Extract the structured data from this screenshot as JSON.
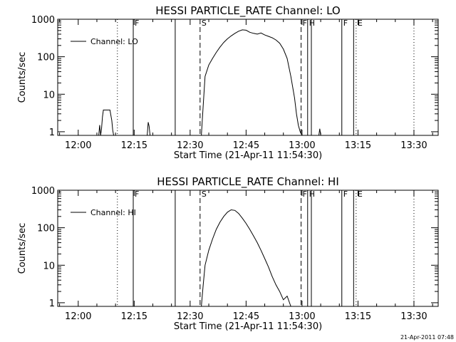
{
  "chart_data": [
    {
      "type": "line",
      "title": "HESSI PARTICLE_RATE Channel: LO",
      "xlabel": "Start Time (21-Apr-11 11:54:30)",
      "ylabel": "Counts/sec",
      "y_scale": "log",
      "xlim": [
        "11:54:30",
        "13:36:30"
      ],
      "ylim": [
        0.8,
        1000
      ],
      "x_ticks": [
        "12:00",
        "12:15",
        "12:30",
        "12:45",
        "13:00",
        "13:15",
        "13:30"
      ],
      "y_ticks": [
        "1",
        "10",
        "100",
        "1000"
      ],
      "legend": {
        "placement": "top-left",
        "entries": [
          "Channel: LO"
        ]
      },
      "series": [
        {
          "name": "Channel: LO",
          "x": [
            "12:05:30",
            "12:05:45",
            "12:06:00",
            "12:06:15",
            "12:06:30",
            "12:06:45",
            "12:07:00",
            "12:07:30",
            "12:08:00",
            "12:08:30",
            "12:09:00",
            "12:09:15",
            "12:09:30",
            "12:18:30",
            "12:18:45",
            "12:19:00",
            "12:19:15",
            "12:33:00",
            "12:33:30",
            "12:34:00",
            "12:35:00",
            "12:36:00",
            "12:37:00",
            "12:38:00",
            "12:39:00",
            "12:40:00",
            "12:41:00",
            "12:42:00",
            "12:43:00",
            "12:44:00",
            "12:45:00",
            "12:46:00",
            "12:47:00",
            "12:48:00",
            "12:49:00",
            "12:50:00",
            "12:51:00",
            "12:52:00",
            "12:53:00",
            "12:54:00",
            "12:55:00",
            "12:56:00",
            "12:57:00",
            "12:58:00",
            "12:58:30",
            "12:59:00",
            "12:59:30",
            "13:00:00",
            "13:04:30",
            "13:04:45",
            "13:05:00"
          ],
          "y": [
            0.8,
            1.5,
            0.8,
            1.2,
            2.5,
            3.8,
            3.8,
            3.8,
            3.8,
            3.8,
            2.0,
            1.1,
            0.8,
            0.8,
            1.8,
            1.4,
            0.8,
            0.8,
            5,
            30,
            60,
            90,
            130,
            180,
            240,
            300,
            360,
            420,
            480,
            520,
            510,
            450,
            420,
            400,
            430,
            380,
            350,
            320,
            280,
            230,
            160,
            90,
            30,
            8,
            3,
            1.5,
            1.0,
            0.8,
            0.8,
            1.2,
            0.8
          ]
        }
      ],
      "markers": [
        {
          "time": "12:10:30",
          "style": "dotted"
        },
        {
          "time": "12:14:45",
          "style": "solid",
          "label": "F"
        },
        {
          "time": "12:26:00",
          "style": "solid"
        },
        {
          "time": "12:32:40",
          "style": "dashed",
          "label": "S"
        },
        {
          "time": "12:59:45",
          "style": "dashed",
          "label": "F"
        },
        {
          "time": "13:01:30",
          "style": "solid",
          "label": "H"
        },
        {
          "time": "13:02:30",
          "style": "solid"
        },
        {
          "time": "13:10:40",
          "style": "solid",
          "label": "F"
        },
        {
          "time": "13:13:50",
          "style": "solid"
        },
        {
          "time": "13:14:30",
          "style": "dotted",
          "label": "E"
        },
        {
          "time": "13:30:00",
          "style": "dotted"
        }
      ]
    },
    {
      "type": "line",
      "title": "HESSI PARTICLE_RATE Channel: HI",
      "xlabel": "Start Time (21-Apr-11 11:54:30)",
      "ylabel": "Counts/sec",
      "y_scale": "log",
      "xlim": [
        "11:54:30",
        "13:36:30"
      ],
      "ylim": [
        0.8,
        1000
      ],
      "x_ticks": [
        "12:00",
        "12:15",
        "12:30",
        "12:45",
        "13:00",
        "13:15",
        "13:30"
      ],
      "y_ticks": [
        "1",
        "10",
        "100",
        "1000"
      ],
      "legend": {
        "placement": "top-left",
        "entries": [
          "Channel: HI"
        ]
      },
      "series": [
        {
          "name": "Channel: HI",
          "x": [
            "12:33:00",
            "12:33:30",
            "12:34:00",
            "12:35:00",
            "12:36:00",
            "12:37:00",
            "12:38:00",
            "12:39:00",
            "12:40:00",
            "12:41:00",
            "12:42:00",
            "12:43:00",
            "12:44:00",
            "12:45:00",
            "12:46:00",
            "12:47:00",
            "12:48:00",
            "12:49:00",
            "12:50:00",
            "12:51:00",
            "12:52:00",
            "12:53:00",
            "12:54:00",
            "12:55:00",
            "12:56:00",
            "12:57:00"
          ],
          "y": [
            0.8,
            3,
            10,
            25,
            50,
            90,
            140,
            200,
            260,
            300,
            290,
            240,
            180,
            130,
            90,
            60,
            40,
            25,
            15,
            9,
            5,
            3,
            2,
            1.2,
            1.5,
            0.8
          ]
        }
      ],
      "markers": [
        {
          "time": "12:10:30",
          "style": "dotted"
        },
        {
          "time": "12:14:45",
          "style": "solid",
          "label": "F"
        },
        {
          "time": "12:26:00",
          "style": "solid"
        },
        {
          "time": "12:32:40",
          "style": "dashed",
          "label": "S"
        },
        {
          "time": "12:59:45",
          "style": "dashed",
          "label": "F"
        },
        {
          "time": "13:01:30",
          "style": "solid",
          "label": "H"
        },
        {
          "time": "13:02:30",
          "style": "solid"
        },
        {
          "time": "13:10:40",
          "style": "solid",
          "label": "F"
        },
        {
          "time": "13:13:50",
          "style": "solid"
        },
        {
          "time": "13:14:30",
          "style": "dotted",
          "label": "E"
        },
        {
          "time": "13:30:00",
          "style": "dotted"
        }
      ]
    }
  ],
  "timestamp": "21-Apr-2011 07:48"
}
